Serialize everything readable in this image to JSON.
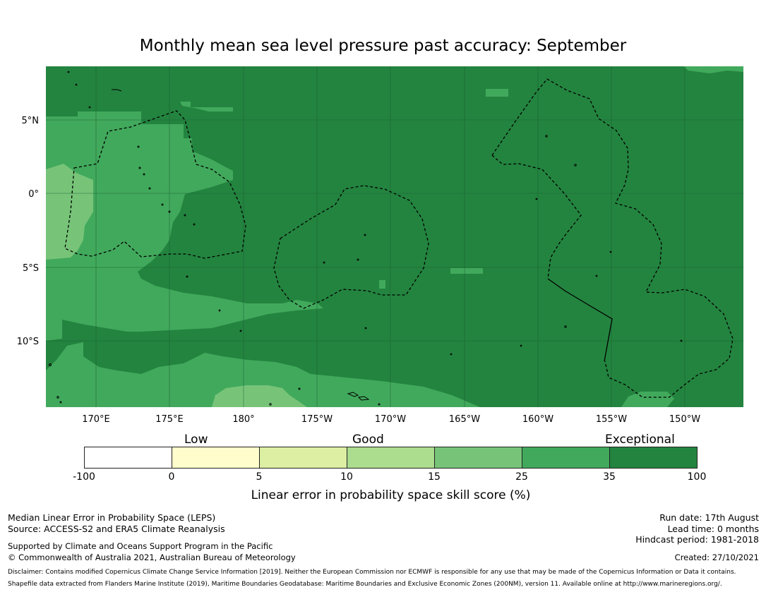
{
  "title": "Monthly mean sea level pressure past accuracy: September",
  "map": {
    "lat_labels": [
      "5°N",
      "0°",
      "5°S",
      "10°S"
    ],
    "lon_labels": [
      "170°E",
      "175°E",
      "180°",
      "175°W",
      "170°W",
      "165°W",
      "160°W",
      "155°W",
      "150°W"
    ],
    "colors": {
      "c5_10": "#dcefa3",
      "c10_15": "#acdd8e",
      "c15_25": "#77c479",
      "c25_35": "#41a95c",
      "c35_100": "#23843f"
    }
  },
  "legend": {
    "words": {
      "low": "Low",
      "good": "Good",
      "exceptional": "Exceptional"
    },
    "segments": [
      {
        "range": "-100 to 0",
        "color": "#ffffff"
      },
      {
        "range": "0 to 5",
        "color": "#fffdcb"
      },
      {
        "range": "5 to 10",
        "color": "#dcefa3"
      },
      {
        "range": "10 to 15",
        "color": "#acdd8e"
      },
      {
        "range": "15 to 25",
        "color": "#77c479"
      },
      {
        "range": "25 to 35",
        "color": "#41a95c"
      },
      {
        "range": "35 to 100",
        "color": "#23843f"
      }
    ],
    "ticks": [
      "-100",
      "0",
      "5",
      "10",
      "15",
      "25",
      "35",
      "100"
    ],
    "label": "Linear error in probability space skill score (%)"
  },
  "footer": {
    "left1": "Median Linear Error in Probability Space (LEPS)",
    "left2": "Source: ACCESS-S2 and ERA5 Climate Reanalysis",
    "left3": "Supported by Climate and Oceans Support Program in the Pacific",
    "left4": "© Commonwealth of Australia 2021, Australian Bureau of Meteorology",
    "run_date": "Run date: 17th August",
    "lead_time": "Lead time: 0 months",
    "hindcast": "Hindcast period: 1981-2018",
    "created": "Created: 27/10/2021",
    "disclaimer": "Disclaimer: Contains modified Copernicus Climate Change Service Information [2019]. Neither the European Commission nor ECMWF is responsible for any use that may be made of the Copernicus Information or Data it contains.",
    "shapefile": "Shapefile data extracted from Flanders Marine Institute (2019), Maritime Boundaries Geodatabase: Maritime Boundaries and Exclusive Economic Zones (200NM), version 11. Available online at http://www.marineregions.org/."
  }
}
